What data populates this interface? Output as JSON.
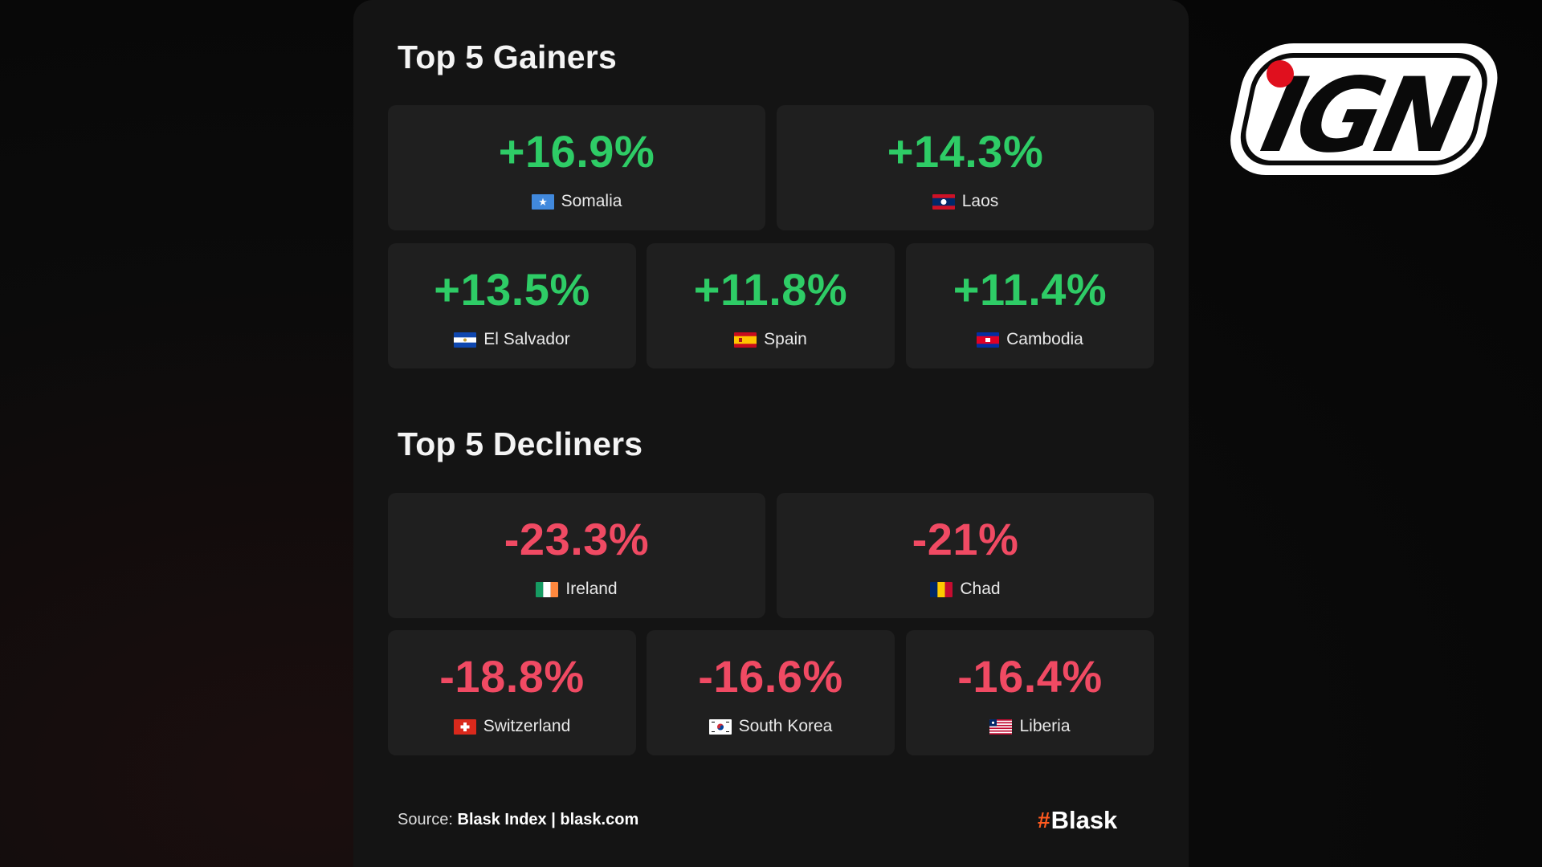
{
  "gainers": {
    "title": "Top 5 Gainers",
    "items": [
      {
        "value": "+16.9%",
        "country": "Somalia"
      },
      {
        "value": "+14.3%",
        "country": "Laos"
      },
      {
        "value": "+13.5%",
        "country": "El Salvador"
      },
      {
        "value": "+11.8%",
        "country": "Spain"
      },
      {
        "value": "+11.4%",
        "country": "Cambodia"
      }
    ]
  },
  "decliners": {
    "title": "Top 5 Decliners",
    "items": [
      {
        "value": "-23.3%",
        "country": "Ireland"
      },
      {
        "value": "-21%",
        "country": "Chad"
      },
      {
        "value": "-18.8%",
        "country": "Switzerland"
      },
      {
        "value": "-16.6%",
        "country": "South Korea"
      },
      {
        "value": "-16.4%",
        "country": "Liberia"
      }
    ]
  },
  "footer": {
    "source_label": "Source:",
    "source_name": "Blask Index",
    "separator": "|",
    "source_url": "blask.com",
    "brand_symbol": "#",
    "brand_name": "Blask"
  },
  "watermark": {
    "text": "IGN"
  },
  "colors": {
    "gain": "#2ecc66",
    "loss": "#f04a63",
    "brand_accent": "#ff5a1f",
    "logo_dot": "#e0101e"
  }
}
